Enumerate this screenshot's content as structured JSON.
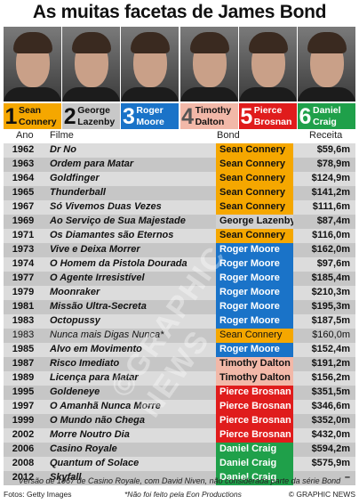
{
  "title": "As muitas facetas de James Bond",
  "actors": [
    {
      "num": "1",
      "name": "Sean\nConnery",
      "bg": "#f5a700",
      "text": "#111111",
      "num_color": "#111111"
    },
    {
      "num": "2",
      "name": "George\nLazenby",
      "bg": "#c8c8c8",
      "text": "#111111",
      "num_color": "#111111"
    },
    {
      "num": "3",
      "name": "Roger\nMoore",
      "bg": "#1a73c8",
      "text": "#ffffff",
      "num_color": "#ffffff"
    },
    {
      "num": "4",
      "name": "Timothy\nDalton",
      "bg": "#f2b8a8",
      "text": "#111111",
      "num_color": "#555555"
    },
    {
      "num": "5",
      "name": "Pierce\nBrosnan",
      "bg": "#e01c1c",
      "text": "#ffffff",
      "num_color": "#ffffff"
    },
    {
      "num": "6",
      "name": "Daniel\nCraig",
      "bg": "#1fa04a",
      "text": "#ffffff",
      "num_color": "#ffffff"
    }
  ],
  "headers": {
    "year": "Ano",
    "film": "Filme",
    "bond": "Bond",
    "revenue": "Receita"
  },
  "bond_colors": {
    "Sean Connery": "#f5a700",
    "George Lazenby": "#d0d0d0",
    "Roger Moore": "#1a73c8",
    "Timothy Dalton": "#f2b8a8",
    "Pierce Brosnan": "#e01c1c",
    "Daniel Craig": "#1fa04a"
  },
  "bond_text_colors": {
    "Sean Connery": "#111111",
    "George Lazenby": "#111111",
    "Roger Moore": "#ffffff",
    "Timothy Dalton": "#111111",
    "Pierce Brosnan": "#ffffff",
    "Daniel Craig": "#ffffff"
  },
  "chart_data": {
    "type": "table",
    "title": "As muitas facetas de James Bond",
    "columns": [
      "Ano",
      "Filme",
      "Bond",
      "Receita"
    ],
    "rows": [
      {
        "year": "1962",
        "film": "Dr No",
        "bond": "Sean Connery",
        "revenue": "$59,6m"
      },
      {
        "year": "1963",
        "film": "Ordem para Matar",
        "bond": "Sean Connery",
        "revenue": "$78,9m"
      },
      {
        "year": "1964",
        "film": "Goldfinger",
        "bond": "Sean Connery",
        "revenue": "$124,9m"
      },
      {
        "year": "1965",
        "film": "Thunderball",
        "bond": "Sean Connery",
        "revenue": "$141,2m"
      },
      {
        "year": "1967",
        "film": "Só Vivemos Duas Vezes",
        "bond": "Sean Connery",
        "revenue": "$111,6m"
      },
      {
        "year": "1969",
        "film": "Ao Serviço de Sua Majestade",
        "bond": "George Lazenby",
        "revenue": "$87,4m"
      },
      {
        "year": "1971",
        "film": "Os Diamantes são Eternos",
        "bond": "Sean Connery",
        "revenue": "$116,0m"
      },
      {
        "year": "1973",
        "film": "Vive e Deixa Morrer",
        "bond": "Roger Moore",
        "revenue": "$162,0m"
      },
      {
        "year": "1974",
        "film": "O Homem da Pistola Dourada",
        "bond": "Roger Moore",
        "revenue": "$97,6m"
      },
      {
        "year": "1977",
        "film": "O Agente Irresistível",
        "bond": "Roger Moore",
        "revenue": "$185,4m"
      },
      {
        "year": "1979",
        "film": "Moonraker",
        "bond": "Roger Moore",
        "revenue": "$210,3m"
      },
      {
        "year": "1981",
        "film": "Missão Ultra-Secreta",
        "bond": "Roger Moore",
        "revenue": "$195,3m"
      },
      {
        "year": "1983",
        "film": "Octopussy",
        "bond": "Roger Moore",
        "revenue": "$187,5m"
      },
      {
        "year": "1983",
        "film": "Nunca mais Digas Nunca*",
        "bond": "Sean Connery",
        "revenue": "$160,0m",
        "nonofficial": true
      },
      {
        "year": "1985",
        "film": "Alvo em Movimento",
        "bond": "Roger Moore",
        "revenue": "$152,4m"
      },
      {
        "year": "1987",
        "film": "Risco Imediato",
        "bond": "Timothy Dalton",
        "revenue": "$191,2m"
      },
      {
        "year": "1989",
        "film": "Licença para Matar",
        "bond": "Timothy Dalton",
        "revenue": "$156,2m"
      },
      {
        "year": "1995",
        "film": "Goldeneye",
        "bond": "Pierce Brosnan",
        "revenue": "$351,5m"
      },
      {
        "year": "1997",
        "film": "O Amanhã Nunca Morre",
        "bond": "Pierce Brosnan",
        "revenue": "$346,6m"
      },
      {
        "year": "1999",
        "film": "O Mundo não Chega",
        "bond": "Pierce Brosnan",
        "revenue": "$352,0m"
      },
      {
        "year": "2002",
        "film": "Morre Noutro Dia",
        "bond": "Pierce Brosnan",
        "revenue": "$432,0m"
      },
      {
        "year": "2006",
        "film": "Casino Royale",
        "bond": "Daniel Craig",
        "revenue": "$594,2m"
      },
      {
        "year": "2008",
        "film": "Quantum of Solace",
        "bond": "Daniel Craig",
        "revenue": "$575,9m"
      },
      {
        "year": "2012",
        "film": "Skyfall",
        "bond": "Daniel Craig",
        "revenue": "–"
      }
    ]
  },
  "footnote": "Versão de 1967 de Casino Royale, com David Niven, não considerada parte da série Bond",
  "footer": {
    "photos": "Fotos: Getty Images",
    "note": "*Não foi feito pela Eon Productions",
    "credit": "© GRAPHIC NEWS"
  },
  "watermark": "©GRAPHIC NEWS"
}
